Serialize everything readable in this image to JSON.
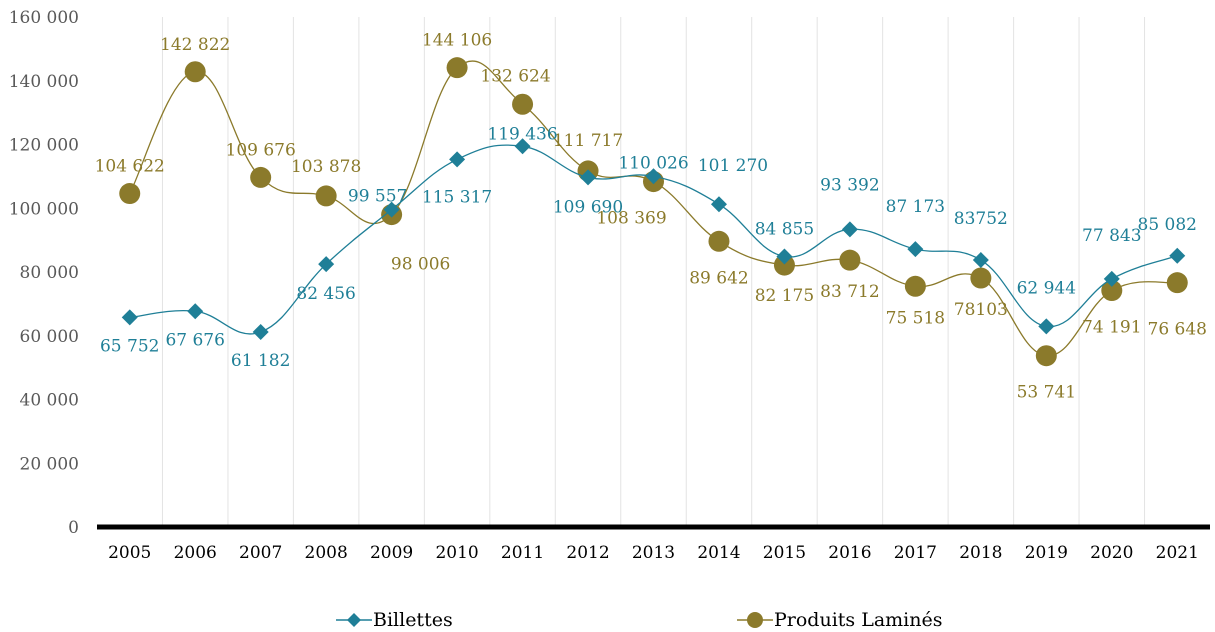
{
  "chart_data": {
    "type": "line",
    "x": [
      "2005",
      "2006",
      "2007",
      "2008",
      "2009",
      "2010",
      "2011",
      "2012",
      "2013",
      "2014",
      "2015",
      "2016",
      "2017",
      "2018",
      "2019",
      "2020",
      "2021"
    ],
    "ylim": [
      0,
      160000
    ],
    "yticks": [
      0,
      20000,
      40000,
      60000,
      80000,
      100000,
      120000,
      140000,
      160000
    ],
    "ytick_labels": [
      "0",
      "20 000",
      "40 000",
      "60 000",
      "80 000",
      "100 000",
      "120 000",
      "140 000",
      "160 000"
    ],
    "grid": "vertical",
    "legend_position": "bottom",
    "series": [
      {
        "name": "Billettes",
        "color": "#1F7F97",
        "marker": "diamond",
        "values": [
          65752,
          67676,
          61182,
          82456,
          99557,
          115317,
          119436,
          109690,
          110026,
          101270,
          84855,
          93392,
          87173,
          83752,
          62944,
          77843,
          85082
        ],
        "labels": [
          "65 752",
          "67 676",
          "61 182",
          "82 456",
          "99 557",
          "115 317",
          "119 436",
          "109 690",
          "110 026",
          "101 270",
          "84 855",
          "93 392",
          "87 173",
          "83752",
          "62 944",
          "77 843",
          "85 082"
        ]
      },
      {
        "name": "Produits Laminés",
        "color": "#8B7A2B",
        "marker": "circle",
        "values": [
          104622,
          142822,
          109676,
          103878,
          98006,
          144106,
          132624,
          111717,
          108369,
          89642,
          82175,
          83712,
          75518,
          78103,
          53741,
          74191,
          76648
        ],
        "labels": [
          "104 622",
          "142 822",
          "109 676",
          "103 878",
          "98 006",
          "144 106",
          "132 624",
          "111 717",
          "108 369",
          "89 642",
          "82 175",
          "83 712",
          "75 518",
          "78103",
          "53 741",
          "74 191",
          "76 648"
        ]
      }
    ]
  }
}
